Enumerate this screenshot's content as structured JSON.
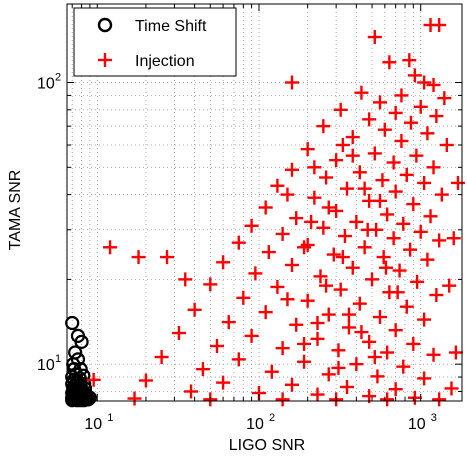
{
  "chart_data": {
    "type": "scatter",
    "title": "",
    "xlabel": "LIGO SNR",
    "ylabel": "TAMA SNR",
    "xscale": "log",
    "yscale": "log",
    "xlim": [
      6.5,
      1800
    ],
    "ylim": [
      7.4,
      190
    ],
    "grid": true,
    "grid_style": "dotted",
    "legend_position": "top-left",
    "x_ticks": [
      {
        "value": 10,
        "base": "10",
        "exp": "1"
      },
      {
        "value": 100,
        "base": "10",
        "exp": "2"
      },
      {
        "value": 1000,
        "base": "10",
        "exp": "3"
      }
    ],
    "y_ticks": [
      {
        "value": 10,
        "base": "10",
        "exp": "1"
      },
      {
        "value": 100,
        "base": "10",
        "exp": "2"
      }
    ],
    "series": [
      {
        "name": "Time Shift",
        "marker": "circle",
        "color": "#000000",
        "points": [
          [
            7.0,
            14.0
          ],
          [
            7.3,
            11.0
          ],
          [
            7.6,
            10.4
          ],
          [
            8.0,
            12.0
          ],
          [
            7.6,
            12.6
          ],
          [
            7.1,
            10.0
          ],
          [
            7.2,
            9.6
          ],
          [
            7.4,
            9.2
          ],
          [
            7.9,
            9.6
          ],
          [
            7.0,
            9.0
          ],
          [
            7.2,
            8.8
          ],
          [
            7.5,
            8.7
          ],
          [
            7.8,
            8.9
          ],
          [
            8.2,
            9.1
          ],
          [
            7.0,
            8.5
          ],
          [
            7.3,
            8.4
          ],
          [
            7.6,
            8.3
          ],
          [
            7.9,
            8.4
          ],
          [
            8.3,
            8.5
          ],
          [
            7.1,
            8.2
          ],
          [
            7.4,
            8.1
          ],
          [
            7.7,
            8.0
          ],
          [
            8.0,
            8.1
          ],
          [
            8.4,
            8.2
          ],
          [
            7.0,
            7.9
          ],
          [
            7.2,
            7.85
          ],
          [
            7.5,
            7.8
          ],
          [
            7.8,
            7.85
          ],
          [
            8.1,
            7.9
          ],
          [
            8.5,
            7.8
          ],
          [
            7.0,
            7.6
          ],
          [
            7.2,
            7.65
          ],
          [
            7.4,
            7.6
          ],
          [
            7.6,
            7.55
          ],
          [
            7.9,
            7.6
          ],
          [
            8.2,
            7.6
          ],
          [
            8.6,
            7.6
          ],
          [
            7.1,
            7.5
          ],
          [
            7.3,
            7.5
          ],
          [
            7.7,
            7.5
          ],
          [
            8.0,
            7.5
          ],
          [
            8.4,
            7.5
          ],
          [
            7.0,
            7.45
          ],
          [
            7.5,
            7.45
          ],
          [
            7.9,
            7.45
          ],
          [
            8.3,
            7.45
          ],
          [
            8.8,
            7.5
          ],
          [
            9.0,
            7.6
          ],
          [
            7.2,
            8.0
          ],
          [
            7.5,
            8.6
          ]
        ]
      },
      {
        "name": "Injection",
        "marker": "plus",
        "color": "#ff0000",
        "points": [
          [
            1150,
            160
          ],
          [
            1300,
            160
          ],
          [
            520,
            145
          ],
          [
            850,
            120
          ],
          [
            640,
            118
          ],
          [
            920,
            106
          ],
          [
            1050,
            100
          ],
          [
            1200,
            98
          ],
          [
            160,
            100
          ],
          [
            430,
            92
          ],
          [
            760,
            90
          ],
          [
            1400,
            88
          ],
          [
            560,
            85
          ],
          [
            1000,
            82
          ],
          [
            320,
            80
          ],
          [
            700,
            78
          ],
          [
            1250,
            76
          ],
          [
            480,
            74
          ],
          [
            870,
            72
          ],
          [
            250,
            70
          ],
          [
            600,
            68
          ],
          [
            1100,
            66
          ],
          [
            380,
            64
          ],
          [
            760,
            62
          ],
          [
            1450,
            60
          ],
          [
            200,
            58
          ],
          [
            520,
            56
          ],
          [
            940,
            55
          ],
          [
            300,
            53
          ],
          [
            680,
            52
          ],
          [
            1200,
            50
          ],
          [
            160,
            49
          ],
          [
            420,
            48
          ],
          [
            820,
            47
          ],
          [
            260,
            46
          ],
          [
            580,
            45
          ],
          [
            1050,
            44
          ],
          [
            130,
            43
          ],
          [
            350,
            42
          ],
          [
            700,
            41
          ],
          [
            1350,
            40
          ],
          [
            220,
            39
          ],
          [
            480,
            38
          ],
          [
            900,
            37
          ],
          [
            110,
            36
          ],
          [
            300,
            35
          ],
          [
            620,
            34
          ],
          [
            1150,
            33.5
          ],
          [
            170,
            33
          ],
          [
            400,
            32
          ],
          [
            780,
            31.5
          ],
          [
            90,
            31
          ],
          [
            250,
            30.5
          ],
          [
            530,
            30
          ],
          [
            1000,
            29.5
          ],
          [
            140,
            29
          ],
          [
            340,
            28.5
          ],
          [
            680,
            28
          ],
          [
            1300,
            27.5
          ],
          [
            75,
            27
          ],
          [
            200,
            26.5
          ],
          [
            450,
            26
          ],
          [
            860,
            25.5
          ],
          [
            115,
            25
          ],
          [
            290,
            24.5
          ],
          [
            590,
            24
          ],
          [
            1100,
            23.5
          ],
          [
            60,
            23
          ],
          [
            160,
            22.5
          ],
          [
            380,
            22
          ],
          [
            740,
            21.5
          ],
          [
            95,
            21
          ],
          [
            240,
            20.5
          ],
          [
            500,
            20
          ],
          [
            950,
            19.6
          ],
          [
            50,
            19.2
          ],
          [
            130,
            18.8
          ],
          [
            320,
            18.4
          ],
          [
            640,
            18
          ],
          [
            1250,
            17.6
          ],
          [
            80,
            17.2
          ],
          [
            200,
            16.8
          ],
          [
            420,
            16.4
          ],
          [
            820,
            16
          ],
          [
            40,
            15.6
          ],
          [
            110,
            15.3
          ],
          [
            270,
            15
          ],
          [
            560,
            14.7
          ],
          [
            1050,
            14.4
          ],
          [
            65,
            14.1
          ],
          [
            170,
            13.8
          ],
          [
            360,
            13.5
          ],
          [
            700,
            13.2
          ],
          [
            32,
            12.9
          ],
          [
            90,
            12.6
          ],
          [
            230,
            12.3
          ],
          [
            480,
            12
          ],
          [
            900,
            11.8
          ],
          [
            55,
            11.6
          ],
          [
            140,
            11.4
          ],
          [
            310,
            11.2
          ],
          [
            620,
            11
          ],
          [
            1200,
            10.8
          ],
          [
            25,
            10.6
          ],
          [
            75,
            10.4
          ],
          [
            190,
            10.2
          ],
          [
            400,
            10
          ],
          [
            780,
            9.8
          ],
          [
            45,
            9.6
          ],
          [
            120,
            9.4
          ],
          [
            270,
            9.2
          ],
          [
            540,
            9.05
          ],
          [
            1050,
            8.9
          ],
          [
            20,
            8.75
          ],
          [
            60,
            8.6
          ],
          [
            160,
            8.45
          ],
          [
            350,
            8.3
          ],
          [
            700,
            8.15
          ],
          [
            38,
            8.0
          ],
          [
            100,
            7.9
          ],
          [
            230,
            7.8
          ],
          [
            480,
            7.7
          ],
          [
            920,
            7.6
          ],
          [
            17,
            7.55
          ],
          [
            50,
            7.5
          ],
          [
            140,
            7.5
          ],
          [
            300,
            7.5
          ],
          [
            620,
            7.5
          ],
          [
            1300,
            7.5
          ],
          [
            220,
            50
          ],
          [
            330,
            60
          ],
          [
            150,
            40
          ],
          [
            270,
            36
          ],
          [
            450,
            42
          ],
          [
            380,
            55
          ],
          [
            210,
            32
          ],
          [
            560,
            38
          ],
          [
            190,
            26
          ],
          [
            330,
            24
          ],
          [
            470,
            30
          ],
          [
            260,
            19
          ],
          [
            610,
            22
          ],
          [
            150,
            17
          ],
          [
            360,
            15
          ],
          [
            720,
            18
          ],
          [
            230,
            14
          ],
          [
            430,
            13
          ],
          [
            190,
            11.8
          ],
          [
            520,
            10.6
          ],
          [
            310,
            9.7
          ],
          [
            9.5,
            8.8
          ],
          [
            12,
            26
          ],
          [
            18,
            24
          ],
          [
            27,
            24
          ],
          [
            35,
            20
          ],
          [
            1700,
            44
          ],
          [
            1600,
            28
          ],
          [
            1500,
            19
          ],
          [
            1650,
            11
          ],
          [
            1550,
            8.2
          ]
        ]
      }
    ]
  }
}
